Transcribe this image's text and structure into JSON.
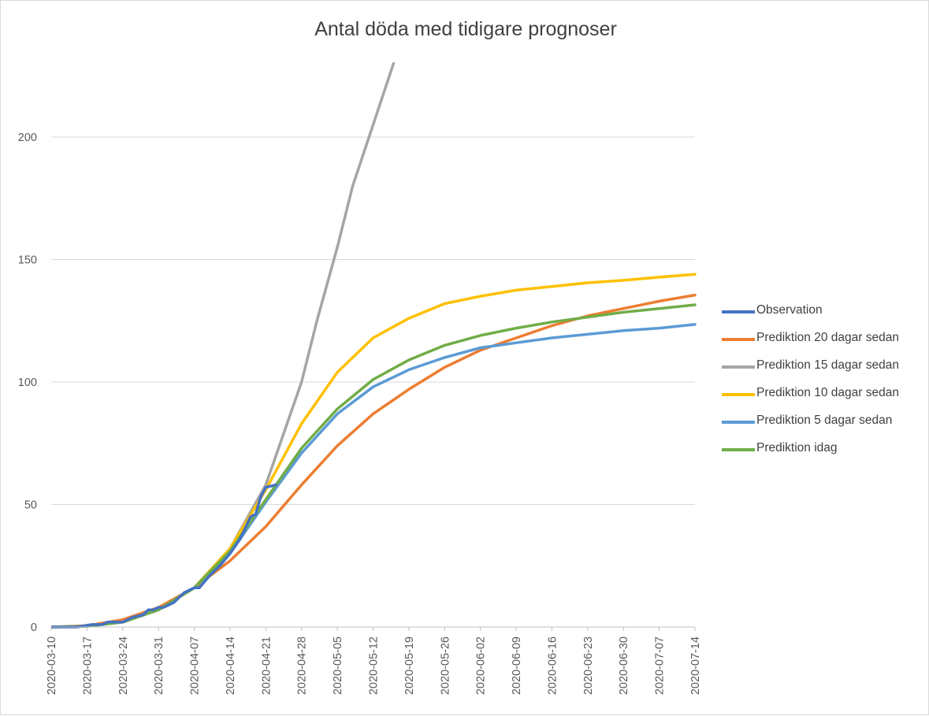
{
  "chart_data": {
    "type": "line",
    "title": "Antal döda med tidigare prognoser",
    "xlabel": "",
    "ylabel": "",
    "x_start": "2020-03-10",
    "x_end": "2020-07-14",
    "x_ticks": [
      "2020-03-10",
      "2020-03-17",
      "2020-03-24",
      "2020-03-31",
      "2020-04-07",
      "2020-04-14",
      "2020-04-21",
      "2020-04-28",
      "2020-05-05",
      "2020-05-12",
      "2020-05-19",
      "2020-05-26",
      "2020-06-02",
      "2020-06-09",
      "2020-06-16",
      "2020-06-23",
      "2020-06-30",
      "2020-07-07",
      "2020-07-14"
    ],
    "y_ticks": [
      0,
      50,
      100,
      150,
      200
    ],
    "ylim": [
      0,
      230
    ],
    "grid": true,
    "legend_position": "right",
    "series": [
      {
        "name": "Observation",
        "color": "#4472C4",
        "points": [
          [
            "2020-03-10",
            0
          ],
          [
            "2020-03-15",
            0
          ],
          [
            "2020-03-18",
            1
          ],
          [
            "2020-03-20",
            1
          ],
          [
            "2020-03-21",
            2
          ],
          [
            "2020-03-24",
            2
          ],
          [
            "2020-03-26",
            4
          ],
          [
            "2020-03-28",
            5
          ],
          [
            "2020-03-29",
            7
          ],
          [
            "2020-03-30",
            7
          ],
          [
            "2020-03-31",
            8
          ],
          [
            "2020-04-01",
            8
          ],
          [
            "2020-04-03",
            10
          ],
          [
            "2020-04-05",
            14
          ],
          [
            "2020-04-07",
            16
          ],
          [
            "2020-04-08",
            16
          ],
          [
            "2020-04-10",
            21
          ],
          [
            "2020-04-12",
            25
          ],
          [
            "2020-04-14",
            30
          ],
          [
            "2020-04-16",
            36
          ],
          [
            "2020-04-18",
            45
          ],
          [
            "2020-04-19",
            46
          ],
          [
            "2020-04-20",
            53
          ],
          [
            "2020-04-21",
            57
          ],
          [
            "2020-04-23",
            58
          ]
        ]
      },
      {
        "name": "Prediktion 20 dagar sedan",
        "color": "#ED7D31",
        "points": [
          [
            "2020-03-10",
            0
          ],
          [
            "2020-03-17",
            0.5
          ],
          [
            "2020-03-24",
            3
          ],
          [
            "2020-03-31",
            8
          ],
          [
            "2020-04-07",
            16
          ],
          [
            "2020-04-14",
            27
          ],
          [
            "2020-04-21",
            41
          ],
          [
            "2020-04-28",
            58
          ],
          [
            "2020-05-05",
            74
          ],
          [
            "2020-05-12",
            87
          ],
          [
            "2020-05-19",
            97
          ],
          [
            "2020-05-26",
            106
          ],
          [
            "2020-06-02",
            113
          ],
          [
            "2020-06-09",
            118
          ],
          [
            "2020-06-16",
            123
          ],
          [
            "2020-06-23",
            127
          ],
          [
            "2020-06-30",
            130
          ],
          [
            "2020-07-07",
            133
          ],
          [
            "2020-07-14",
            135.5
          ]
        ]
      },
      {
        "name": "Prediktion 15 dagar sedan",
        "color": "#A5A5A5",
        "points": [
          [
            "2020-03-10",
            0
          ],
          [
            "2020-03-17",
            0.3
          ],
          [
            "2020-03-24",
            2
          ],
          [
            "2020-03-31",
            7
          ],
          [
            "2020-04-07",
            16
          ],
          [
            "2020-04-14",
            32
          ],
          [
            "2020-04-21",
            58
          ],
          [
            "2020-04-28",
            100
          ],
          [
            "2020-05-01",
            125
          ],
          [
            "2020-05-05",
            155
          ],
          [
            "2020-05-08",
            180
          ],
          [
            "2020-05-12",
            205
          ],
          [
            "2020-05-16",
            230
          ]
        ]
      },
      {
        "name": "Prediktion 10 dagar sedan",
        "color": "#FFC000",
        "points": [
          [
            "2020-03-10",
            0
          ],
          [
            "2020-03-17",
            0.3
          ],
          [
            "2020-03-24",
            2
          ],
          [
            "2020-03-31",
            7
          ],
          [
            "2020-04-07",
            16
          ],
          [
            "2020-04-14",
            32
          ],
          [
            "2020-04-21",
            56
          ],
          [
            "2020-04-28",
            83
          ],
          [
            "2020-05-05",
            104
          ],
          [
            "2020-05-12",
            118
          ],
          [
            "2020-05-19",
            126
          ],
          [
            "2020-05-26",
            132
          ],
          [
            "2020-06-02",
            135
          ],
          [
            "2020-06-09",
            137.5
          ],
          [
            "2020-06-16",
            139
          ],
          [
            "2020-06-23",
            140.5
          ],
          [
            "2020-06-30",
            141.5
          ],
          [
            "2020-07-07",
            142.8
          ],
          [
            "2020-07-14",
            144
          ]
        ]
      },
      {
        "name": "Prediktion 5 dagar sedan",
        "color": "#5B9BD5",
        "points": [
          [
            "2020-03-10",
            0
          ],
          [
            "2020-03-17",
            0.3
          ],
          [
            "2020-03-24",
            2
          ],
          [
            "2020-03-31",
            7
          ],
          [
            "2020-04-07",
            16
          ],
          [
            "2020-04-14",
            30
          ],
          [
            "2020-04-21",
            51
          ],
          [
            "2020-04-28",
            71
          ],
          [
            "2020-05-05",
            87
          ],
          [
            "2020-05-12",
            98
          ],
          [
            "2020-05-19",
            105
          ],
          [
            "2020-05-26",
            110
          ],
          [
            "2020-06-02",
            114
          ],
          [
            "2020-06-09",
            116
          ],
          [
            "2020-06-16",
            118
          ],
          [
            "2020-06-23",
            119.5
          ],
          [
            "2020-06-30",
            121
          ],
          [
            "2020-07-07",
            122
          ],
          [
            "2020-07-14",
            123.5
          ]
        ]
      },
      {
        "name": "Prediktion idag",
        "color": "#70AD47",
        "points": [
          [
            "2020-03-10",
            0
          ],
          [
            "2020-03-17",
            0.3
          ],
          [
            "2020-03-24",
            2
          ],
          [
            "2020-03-31",
            7
          ],
          [
            "2020-04-07",
            16
          ],
          [
            "2020-04-14",
            31
          ],
          [
            "2020-04-21",
            52
          ],
          [
            "2020-04-28",
            73
          ],
          [
            "2020-05-05",
            89
          ],
          [
            "2020-05-12",
            101
          ],
          [
            "2020-05-19",
            109
          ],
          [
            "2020-05-26",
            115
          ],
          [
            "2020-06-02",
            119
          ],
          [
            "2020-06-09",
            122
          ],
          [
            "2020-06-16",
            124.5
          ],
          [
            "2020-06-23",
            126.5
          ],
          [
            "2020-06-30",
            128.5
          ],
          [
            "2020-07-07",
            130
          ],
          [
            "2020-07-14",
            131.5
          ]
        ]
      }
    ]
  }
}
